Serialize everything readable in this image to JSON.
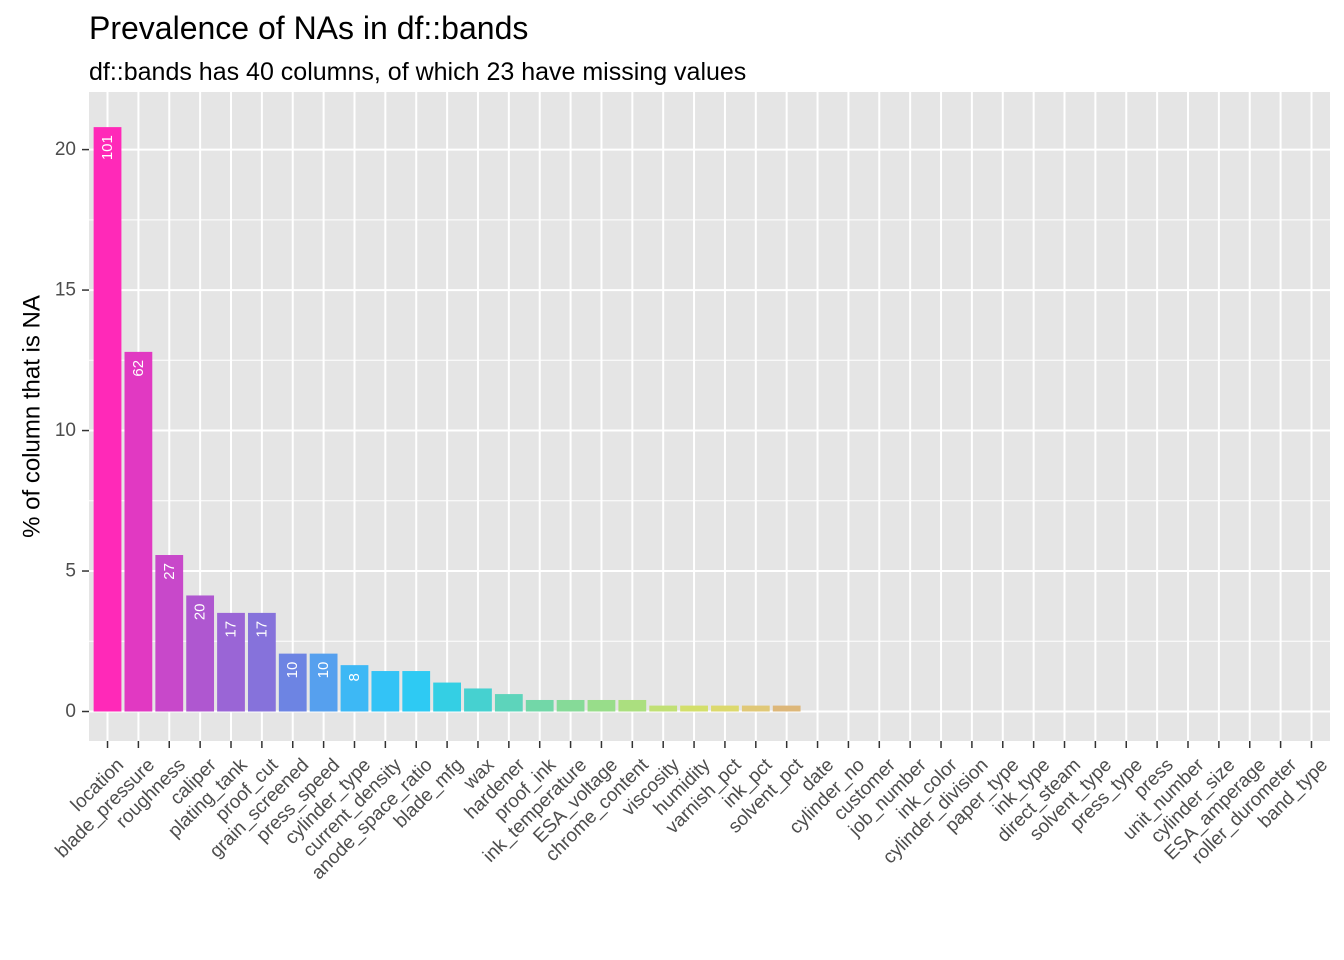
{
  "chart_data": {
    "type": "bar",
    "title": "Prevalence of NAs in df::bands",
    "subtitle": "df::bands has 40 columns, of which 23 have missing values",
    "xlabel": "",
    "ylabel": "% of column that is NA",
    "ylim": [
      -1.05,
      22.05
    ],
    "y_ticks": [
      0,
      5,
      10,
      15,
      20
    ],
    "grid": true,
    "legend": "none",
    "categories": [
      "location",
      "blade_pressure",
      "roughness",
      "caliper",
      "plating_tank",
      "proof_cut",
      "grain_screened",
      "press_speed",
      "cylinder_type",
      "current_density",
      "anode_space_ratio",
      "blade_mfg",
      "wax",
      "hardener",
      "proof_ink",
      "ink_temperature",
      "ESA_voltage",
      "chrome_content",
      "viscosity",
      "humidity",
      "varnish_pct",
      "ink_pct",
      "solvent_pct",
      "date",
      "cylinder_no",
      "customer",
      "job_number",
      "ink_color",
      "cylinder_division",
      "paper_type",
      "ink_type",
      "direct_steam",
      "solvent_type",
      "press_type",
      "press",
      "unit_number",
      "cylinder_size",
      "ESA_amperage",
      "roller_durometer",
      "band_type"
    ],
    "values": [
      20.8,
      12.8,
      5.57,
      4.13,
      3.51,
      3.51,
      2.06,
      2.06,
      1.65,
      1.44,
      1.44,
      1.03,
      0.82,
      0.62,
      0.41,
      0.41,
      0.41,
      0.41,
      0.21,
      0.21,
      0.21,
      0.21,
      0.21,
      0,
      0,
      0,
      0,
      0,
      0,
      0,
      0,
      0,
      0,
      0,
      0,
      0,
      0,
      0,
      0,
      0
    ],
    "counts": [
      "101",
      "62",
      "27",
      "20",
      "17",
      "17",
      "10",
      "10",
      "8",
      "",
      "",
      "",
      "",
      "",
      "",
      "",
      "",
      "",
      "",
      "",
      "",
      "",
      "",
      "",
      "",
      "",
      "",
      "",
      "",
      "",
      "",
      "",
      "",
      "",
      "",
      "",
      "",
      "",
      "",
      ""
    ],
    "colors": [
      "#FF29B8",
      "#E139C2",
      "#C848CA",
      "#AF57D0",
      "#9A65D6",
      "#8672DB",
      "#6D84E3",
      "#56A0EE",
      "#3DB8F5",
      "#33C3F6",
      "#2ECAF3",
      "#34CFE4",
      "#46D1D0",
      "#5DD4BB",
      "#72D7A8",
      "#86DA98",
      "#98DD8A",
      "#ABDF7F",
      "#C1E075",
      "#D3DF6B",
      "#DCD96D",
      "#E0C877",
      "#DDB779",
      "#DCAF7B",
      "#DCAF7B",
      "#DCAF7B",
      "#DCAF7B",
      "#DCAF7B",
      "#DCAF7B",
      "#DCAF7B",
      "#DCAF7B",
      "#DCAF7B",
      "#DCAF7B",
      "#DCAF7B",
      "#DCAF7B",
      "#DCAF7B",
      "#DCAF7B",
      "#DCAF7B",
      "#DCAF7B",
      "#DCAF7B"
    ],
    "panel_background": "#E5E5E5",
    "gridline_color": "#FFFFFF"
  }
}
